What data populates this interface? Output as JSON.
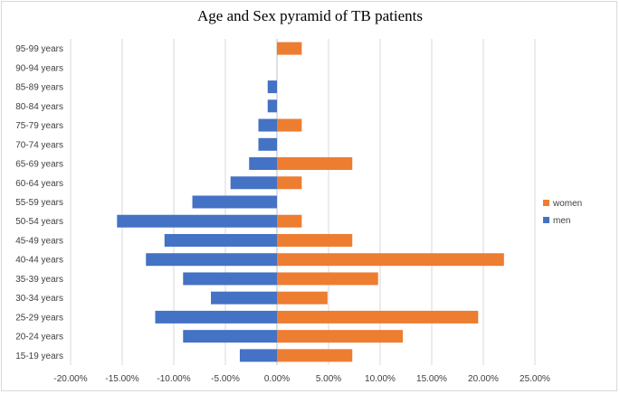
{
  "chart_data": {
    "type": "bar",
    "orientation": "horizontal",
    "title": "Age and Sex pyramid of TB patients",
    "xlabel": "",
    "ylabel": "",
    "xlim": [
      -0.2,
      0.25
    ],
    "xticks": [
      -0.2,
      -0.15,
      -0.1,
      -0.05,
      0.0,
      0.05,
      0.1,
      0.15,
      0.2,
      0.25
    ],
    "xtick_labels": [
      "-20.00%",
      "-15.00%",
      "-10.00%",
      "-5.00%",
      "0.00%",
      "5.00%",
      "10.00%",
      "15.00%",
      "20.00%",
      "25.00%"
    ],
    "grid": true,
    "legend_position": "right",
    "categories": [
      "15-19 years",
      "20-24 years",
      "25-29 years",
      "30-34 years",
      "35-39 years",
      "40-44 years",
      "45-49 years",
      "50-54 years",
      "55-59 years",
      "60-64 years",
      "65-69 years",
      "70-74 years",
      "75-79 years",
      "80-84 years",
      "85-89 years",
      "90-94 years",
      "95-99 years"
    ],
    "series": [
      {
        "name": "women",
        "color": "#ed7d31",
        "values": [
          0.073,
          0.122,
          0.195,
          0.049,
          0.098,
          0.22,
          0.073,
          0.024,
          0.0,
          0.024,
          0.073,
          0.0,
          0.024,
          0.0,
          0.0,
          0.0,
          0.024
        ]
      },
      {
        "name": "men",
        "color": "#4472c4",
        "values": [
          -0.036,
          -0.091,
          -0.118,
          -0.064,
          -0.091,
          -0.127,
          -0.109,
          -0.155,
          -0.082,
          -0.045,
          -0.027,
          -0.018,
          -0.018,
          -0.009,
          -0.009,
          0.0,
          0.0
        ]
      }
    ]
  }
}
